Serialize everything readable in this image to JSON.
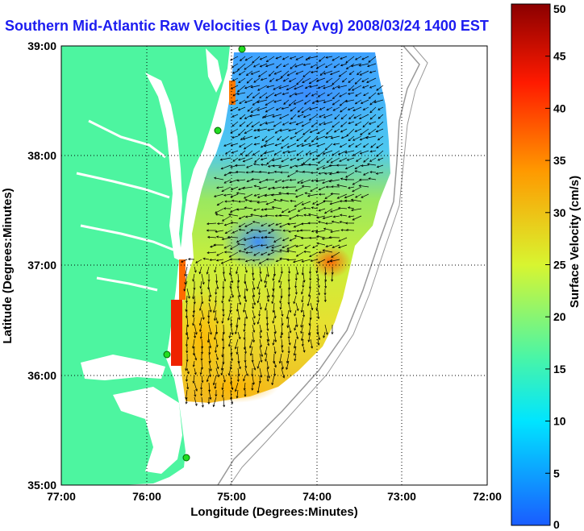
{
  "title": "Southern Mid-Atlantic Raw Velocities (1 Day Avg) 2008/03/24 1400 EST",
  "axes": {
    "xlabel": "Longitude (Degrees:Minutes)",
    "ylabel": "Latitude (Degrees:Minutes)",
    "xticks": [
      "77:00",
      "76:00",
      "75:00",
      "74:00",
      "73:00",
      "72:00"
    ],
    "yticks": [
      "39:00",
      "38:00",
      "37:00",
      "36:00",
      "35:00"
    ]
  },
  "colorbar": {
    "label": "Surface Velocity (cm/s)",
    "ticks": [
      "0",
      "5",
      "10",
      "15",
      "20",
      "25",
      "30",
      "35",
      "40",
      "45",
      "50"
    ],
    "min": 0,
    "max": 50,
    "colors": [
      "#1a5cff",
      "#00e5ff",
      "#48f5a8",
      "#d8f530",
      "#ff9900",
      "#ff1a00",
      "#8b0000"
    ]
  },
  "colors": {
    "land": "#4df5a0",
    "water_inland": "#ffffff",
    "bathymetry": "#999999",
    "stations": "#22dd22"
  },
  "grid": true
}
